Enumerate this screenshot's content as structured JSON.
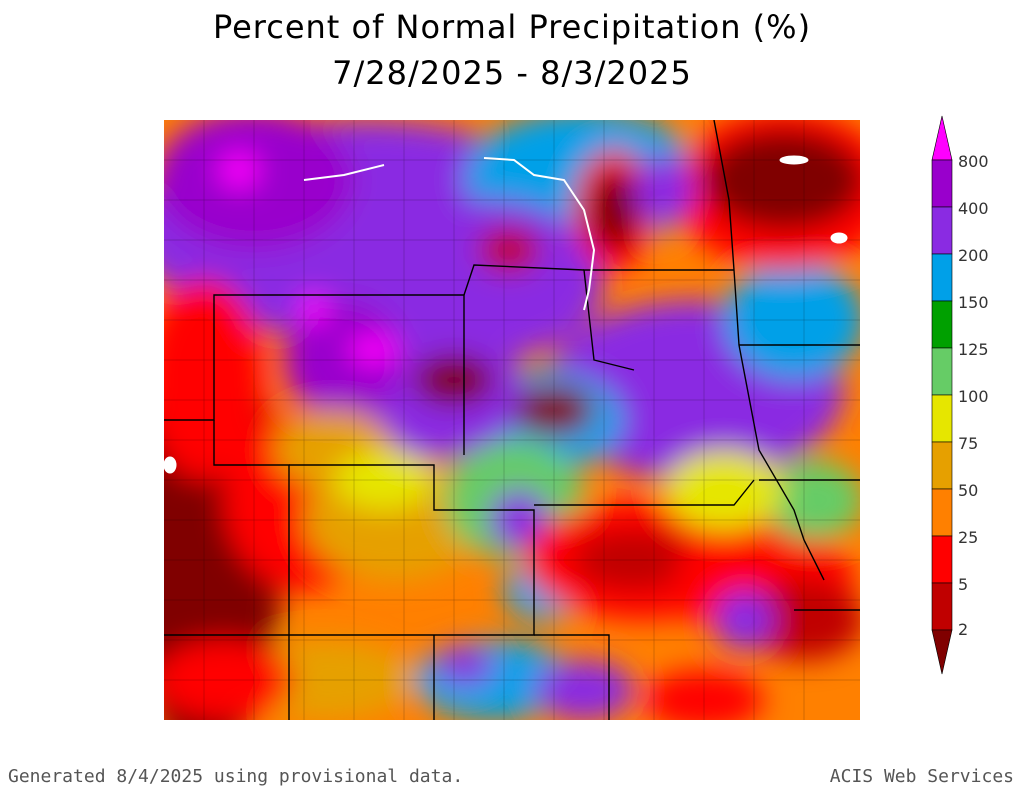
{
  "title": "Percent of Normal Precipitation (%)",
  "date_range": "7/28/2025 - 8/3/2025",
  "legend": {
    "levels": [
      "800",
      "400",
      "200",
      "150",
      "125",
      "100",
      "75",
      "50",
      "25",
      "5",
      "2"
    ],
    "colors": {
      "gt800": "#ff00ff",
      "400_800": "#9900cc",
      "200_400": "#8a2be2",
      "150_200": "#00a0e8",
      "125_150": "#00a000",
      "100_125": "#66cc66",
      "75_100": "#e6e600",
      "50_75": "#e6a000",
      "25_50": "#ff8000",
      "5_25": "#ff0000",
      "2_5": "#c00000",
      "lt2": "#800000"
    }
  },
  "footer": {
    "generated": "Generated 8/4/2025 using provisional data.",
    "source": "ACIS Web Services"
  }
}
